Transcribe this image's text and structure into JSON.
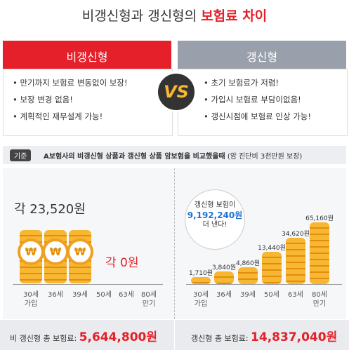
{
  "title": {
    "prefix": "비갱신형과 갱신형의",
    "highlight": "보험료 차이"
  },
  "left": {
    "heading": "비갱신형",
    "points": [
      "만기까지 보험료 변동없이 보장!",
      "보장 변경 없음!",
      "계획적인 재무설계 가능!"
    ]
  },
  "vs": "VS",
  "right": {
    "heading": "갱신형",
    "points": [
      "초기 보험료가 저렴!",
      "가입시 보험료 부담이없음!",
      "갱신시점에 보험료 인상 가능!"
    ]
  },
  "basis": {
    "tag": "기준",
    "text": "A보험사의 비갱신형 상품과 갱신형 상품 암보험을 비교했을때",
    "note": "(암 진단비 3천만원 보장)"
  },
  "left_chart": {
    "amount": "각 23,520원",
    "zero": "각 0원",
    "ages": [
      [
        "30세",
        "가입"
      ],
      [
        "36세"
      ],
      [
        "39세"
      ],
      [
        "50세"
      ],
      [
        "63세"
      ],
      [
        "80세",
        "만기"
      ]
    ],
    "total_label": "비 갱신형 총 보험료:",
    "total": "5,644,800원"
  },
  "right_chart": {
    "bubble": [
      "갱신형 보험이",
      "9,192,240원",
      "더 낸다!"
    ],
    "values": [
      "1,710원",
      "3,840원",
      "4,860원",
      "13,440원",
      "34,620원",
      "65,160원"
    ],
    "ages": [
      [
        "30세",
        "가입"
      ],
      [
        "36세"
      ],
      [
        "39세"
      ],
      [
        "50세"
      ],
      [
        "63세"
      ],
      [
        "80세",
        "만기"
      ]
    ],
    "total_label": "갱신형 총 보험료:",
    "total": "14,837,040원"
  }
}
